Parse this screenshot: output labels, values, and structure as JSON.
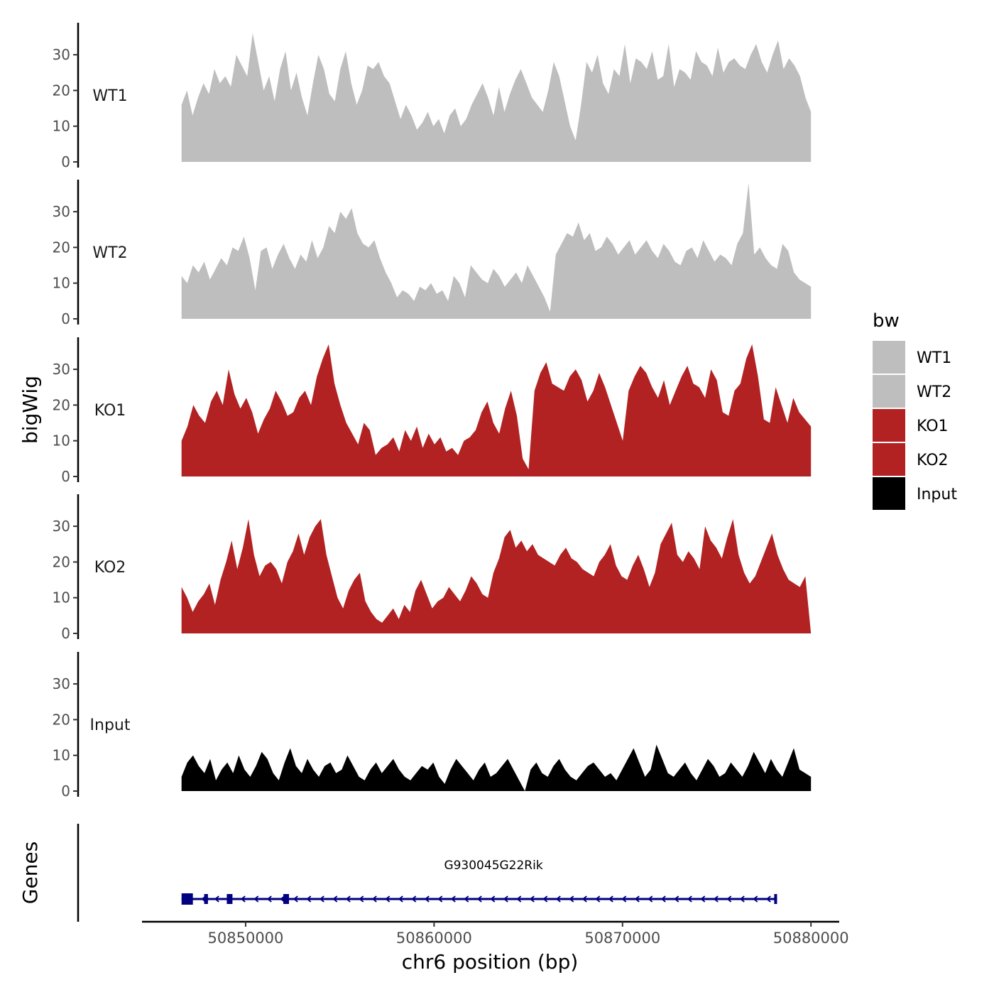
{
  "chart_data": {
    "type": "area",
    "ylabel": "bigWig",
    "xlabel": "chr6 position (bp)",
    "xlim": [
      50844500,
      50881500
    ],
    "ylim": [
      0,
      39
    ],
    "yticks": [
      0,
      10,
      20,
      30
    ],
    "xticks": [
      50850000,
      50860000,
      50870000,
      50880000
    ],
    "xtick_labels": [
      "50850000",
      "50860000",
      "50870000",
      "50880000"
    ],
    "x_start": 50846600,
    "x_end": 50880000,
    "legend": {
      "title": "bw",
      "position": "right",
      "entries": [
        {
          "label": "WT1",
          "color": "#bebebe"
        },
        {
          "label": "WT2",
          "color": "#bebebe"
        },
        {
          "label": "KO1",
          "color": "#b22222"
        },
        {
          "label": "KO2",
          "color": "#b22222"
        },
        {
          "label": "Input",
          "color": "#000000"
        }
      ]
    },
    "series": [
      {
        "name": "WT1",
        "color": "#bebebe",
        "values": [
          16,
          20,
          13,
          18,
          22,
          19,
          26,
          22,
          24,
          21,
          30,
          27,
          24,
          36,
          28,
          20,
          24,
          17,
          26,
          31,
          20,
          25,
          18,
          13,
          22,
          30,
          26,
          19,
          17,
          26,
          31,
          22,
          16,
          20,
          27,
          26,
          28,
          24,
          22,
          17,
          12,
          16,
          13,
          9,
          11,
          14,
          10,
          12,
          8,
          13,
          15,
          10,
          12,
          16,
          19,
          22,
          18,
          13,
          21,
          14,
          19,
          23,
          26,
          22,
          18,
          16,
          14,
          20,
          28,
          24,
          17,
          10,
          6,
          16,
          28,
          25,
          30,
          22,
          19,
          26,
          24,
          33,
          22,
          29,
          28,
          26,
          31,
          23,
          24,
          33,
          21,
          26,
          25,
          23,
          31,
          28,
          27,
          24,
          32,
          25,
          28,
          29,
          27,
          26,
          30,
          33,
          28,
          25,
          30,
          34,
          26,
          29,
          27,
          24,
          18,
          14
        ]
      },
      {
        "name": "WT2",
        "color": "#bebebe",
        "values": [
          12,
          10,
          15,
          13,
          16,
          11,
          14,
          17,
          15,
          20,
          19,
          23,
          17,
          8,
          19,
          20,
          14,
          18,
          21,
          17,
          14,
          18,
          16,
          22,
          17,
          20,
          26,
          24,
          30,
          28,
          31,
          24,
          21,
          20,
          22,
          17,
          13,
          10,
          6,
          8,
          7,
          5,
          9,
          8,
          10,
          7,
          8,
          5,
          12,
          10,
          6,
          15,
          13,
          11,
          10,
          14,
          12,
          9,
          11,
          13,
          10,
          15,
          12,
          9,
          6,
          2,
          18,
          21,
          24,
          23,
          27,
          22,
          24,
          19,
          20,
          23,
          21,
          18,
          20,
          22,
          18,
          20,
          22,
          19,
          17,
          21,
          19,
          16,
          15,
          19,
          20,
          17,
          22,
          19,
          16,
          18,
          17,
          15,
          21,
          24,
          38,
          18,
          20,
          17,
          15,
          14,
          21,
          19,
          13,
          11,
          10,
          9
        ]
      },
      {
        "name": "KO1",
        "color": "#b22222",
        "values": [
          10,
          14,
          20,
          17,
          15,
          21,
          24,
          20,
          30,
          23,
          19,
          22,
          18,
          12,
          16,
          19,
          24,
          21,
          17,
          18,
          22,
          24,
          20,
          28,
          33,
          37,
          26,
          20,
          15,
          12,
          9,
          15,
          13,
          6,
          8,
          9,
          11,
          7,
          13,
          10,
          14,
          8,
          12,
          9,
          11,
          7,
          8,
          6,
          10,
          11,
          13,
          18,
          21,
          15,
          12,
          19,
          24,
          17,
          5,
          2,
          24,
          29,
          32,
          26,
          25,
          24,
          28,
          30,
          27,
          21,
          24,
          29,
          25,
          20,
          15,
          10,
          24,
          28,
          31,
          29,
          25,
          22,
          27,
          20,
          24,
          28,
          31,
          26,
          25,
          22,
          30,
          27,
          18,
          17,
          24,
          26,
          33,
          37,
          28,
          16,
          15,
          25,
          20,
          15,
          22,
          18,
          16,
          14
        ]
      },
      {
        "name": "KO2",
        "color": "#b22222",
        "values": [
          13,
          10,
          6,
          9,
          11,
          14,
          8,
          15,
          20,
          26,
          18,
          24,
          32,
          22,
          16,
          19,
          20,
          18,
          14,
          20,
          23,
          28,
          22,
          27,
          30,
          32,
          22,
          16,
          10,
          7,
          12,
          15,
          17,
          9,
          6,
          4,
          3,
          5,
          7,
          4,
          8,
          6,
          12,
          15,
          11,
          7,
          9,
          10,
          13,
          11,
          9,
          12,
          16,
          14,
          11,
          10,
          17,
          21,
          27,
          29,
          24,
          26,
          23,
          25,
          22,
          21,
          20,
          19,
          22,
          24,
          21,
          20,
          18,
          17,
          16,
          20,
          22,
          25,
          19,
          16,
          15,
          19,
          22,
          18,
          13,
          17,
          25,
          28,
          31,
          22,
          20,
          23,
          21,
          18,
          30,
          26,
          24,
          21,
          27,
          32,
          22,
          17,
          14,
          16,
          20,
          24,
          28,
          22,
          18,
          15,
          14,
          13,
          16,
          0
        ]
      },
      {
        "name": "Input",
        "color": "#000000",
        "values": [
          4,
          8,
          10,
          7,
          5,
          9,
          3,
          6,
          8,
          5,
          10,
          6,
          4,
          7,
          11,
          9,
          5,
          3,
          8,
          12,
          7,
          5,
          9,
          6,
          4,
          7,
          8,
          5,
          6,
          10,
          7,
          4,
          3,
          6,
          8,
          5,
          7,
          9,
          6,
          4,
          3,
          5,
          7,
          6,
          8,
          4,
          2,
          6,
          9,
          7,
          5,
          3,
          6,
          8,
          4,
          5,
          7,
          9,
          6,
          3,
          0,
          6,
          8,
          5,
          4,
          7,
          9,
          6,
          4,
          3,
          5,
          7,
          8,
          6,
          4,
          5,
          3,
          6,
          9,
          12,
          8,
          4,
          6,
          13,
          9,
          5,
          4,
          6,
          8,
          5,
          3,
          6,
          9,
          7,
          4,
          5,
          8,
          6,
          4,
          7,
          11,
          8,
          5,
          9,
          6,
          4,
          8,
          12,
          6,
          5,
          4
        ]
      }
    ],
    "genes_track": {
      "label": "Genes",
      "gene_name": "G930045G22Rik",
      "strand": "-",
      "start": 50846600,
      "end": 50878200,
      "exons": [
        [
          50846600,
          50847200
        ],
        [
          50847800,
          50848000
        ],
        [
          50849000,
          50849300
        ],
        [
          50852000,
          50852300
        ],
        [
          50878050,
          50878200
        ]
      ],
      "color": "#000080"
    }
  }
}
